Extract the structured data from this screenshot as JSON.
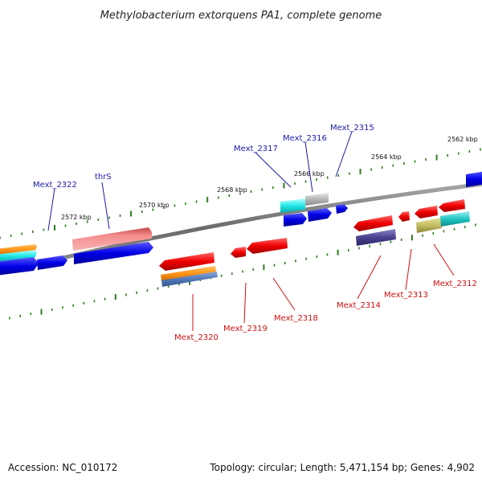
{
  "title": "Methylobacterium extorquens PA1, complete genome",
  "footer": {
    "accession": "Accession: NC_010172",
    "summary": "Topology: circular; Length: 5,471,154 bp; Genes: 4,902"
  },
  "colors": {
    "backbone": "#7a7a7a",
    "tick": "#2e7d1e",
    "forward_gene": "#1010e0",
    "reverse_gene": "#ee1111",
    "forward_label": "#1a1aa8",
    "reverse_label": "#d01010"
  },
  "ticks": {
    "labels": [
      "2572 kbp",
      "2570 kbp",
      "2568 kbp",
      "2566 kbp",
      "2564 kbp",
      "2562 kbp"
    ]
  },
  "genes": {
    "forward": [
      {
        "label": "Mext_2322"
      },
      {
        "label": "thrS"
      },
      {
        "label": "Mext_2317"
      },
      {
        "label": "Mext_2316"
      },
      {
        "label": "Mext_2315"
      }
    ],
    "reverse": [
      {
        "label": "Mext_2320"
      },
      {
        "label": "Mext_2319"
      },
      {
        "label": "Mext_2318"
      },
      {
        "label": "Mext_2314"
      },
      {
        "label": "Mext_2313"
      },
      {
        "label": "Mext_2312"
      }
    ]
  }
}
